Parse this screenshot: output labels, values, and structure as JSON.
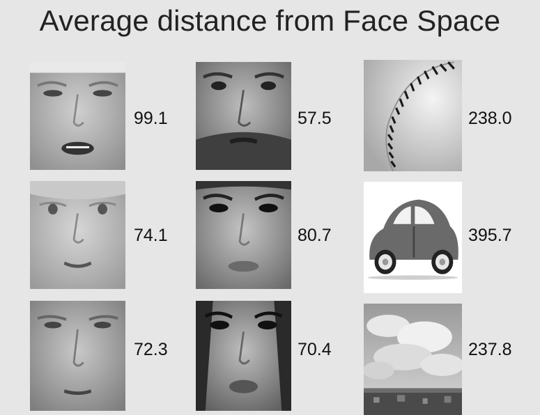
{
  "title": "Average distance from Face Space",
  "items": [
    {
      "subject": "face",
      "value": "99.1"
    },
    {
      "subject": "face",
      "value": "57.5"
    },
    {
      "subject": "baseball",
      "value": "238.0"
    },
    {
      "subject": "face",
      "value": "74.1"
    },
    {
      "subject": "face",
      "value": "80.7"
    },
    {
      "subject": "car",
      "value": "395.7"
    },
    {
      "subject": "face",
      "value": "72.3"
    },
    {
      "subject": "face",
      "value": "70.4"
    },
    {
      "subject": "clouds",
      "value": "237.8"
    }
  ]
}
